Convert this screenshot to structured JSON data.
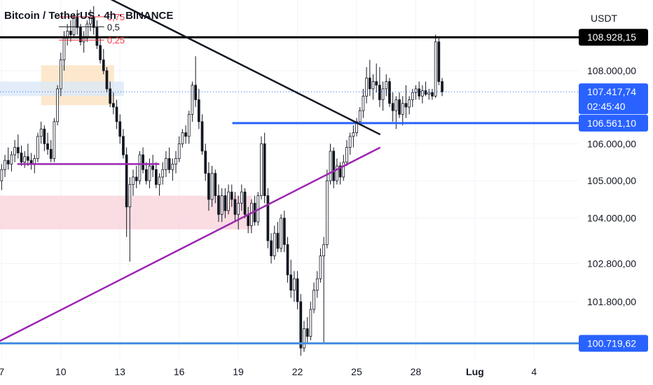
{
  "header": {
    "title": "Bitcoin / TetherUS · 4h · BINANCE",
    "unit": "USDT"
  },
  "chart_data": {
    "type": "candlestick",
    "title": "Bitcoin / TetherUS · 4h · BINANCE",
    "ylabel": "USDT",
    "ylim": [
      100250,
      109900
    ],
    "y_scale": "log",
    "x_ticks": [
      {
        "label": "7",
        "day": 7
      },
      {
        "label": "10",
        "day": 10
      },
      {
        "label": "13",
        "day": 13
      },
      {
        "label": "16",
        "day": 16
      },
      {
        "label": "19",
        "day": 19
      },
      {
        "label": "22",
        "day": 22
      },
      {
        "label": "25",
        "day": 25
      },
      {
        "label": "28",
        "day": 28
      },
      {
        "label": "Lug",
        "day": 31
      },
      {
        "label": "4",
        "day": 34
      }
    ],
    "y_ticks": [
      {
        "label": "108.000,00",
        "value": 108000
      },
      {
        "label": "106.000,00",
        "value": 106000
      },
      {
        "label": "105.000,00",
        "value": 105000
      },
      {
        "label": "104.000,00",
        "value": 104000
      },
      {
        "label": "102.800,00",
        "value": 102800
      },
      {
        "label": "101.800,00",
        "value": 101800
      }
    ],
    "price_tags": [
      {
        "label": "108.928,15",
        "value": 108928.15,
        "color": "#000000"
      },
      {
        "label": "107.417,74",
        "sub": "02:45:40",
        "value": 107417.74,
        "color": "#2962ff"
      },
      {
        "label": "106.561,10",
        "value": 106561.1,
        "color": "#2962ff"
      },
      {
        "label": "100.719,62",
        "value": 100719.62,
        "color": "#2962ff"
      }
    ],
    "current_price": 107417.74,
    "candle_colors": {
      "up": "#089981",
      "down": "#f23645",
      "body": "#131722"
    },
    "candles": [
      {
        "o": 105000,
        "h": 105450,
        "l": 104750,
        "c": 105300
      },
      {
        "o": 105300,
        "h": 105700,
        "l": 105100,
        "c": 105550
      },
      {
        "o": 105550,
        "h": 105900,
        "l": 105300,
        "c": 105450
      },
      {
        "o": 105450,
        "h": 105800,
        "l": 105250,
        "c": 105700
      },
      {
        "o": 105700,
        "h": 106100,
        "l": 105500,
        "c": 105900
      },
      {
        "o": 105900,
        "h": 106250,
        "l": 105600,
        "c": 105750
      },
      {
        "o": 105750,
        "h": 105950,
        "l": 105400,
        "c": 105500
      },
      {
        "o": 105500,
        "h": 105800,
        "l": 105350,
        "c": 105650
      },
      {
        "o": 105650,
        "h": 106000,
        "l": 105400,
        "c": 105550
      },
      {
        "o": 105550,
        "h": 105750,
        "l": 105300,
        "c": 105450
      },
      {
        "o": 105450,
        "h": 105700,
        "l": 105200,
        "c": 105600
      },
      {
        "o": 105600,
        "h": 106300,
        "l": 105500,
        "c": 106200
      },
      {
        "o": 106200,
        "h": 106600,
        "l": 106000,
        "c": 106400
      },
      {
        "o": 106400,
        "h": 106500,
        "l": 105800,
        "c": 106000
      },
      {
        "o": 106000,
        "h": 106300,
        "l": 105700,
        "c": 105850
      },
      {
        "o": 105850,
        "h": 106100,
        "l": 105500,
        "c": 105600
      },
      {
        "o": 105600,
        "h": 106700,
        "l": 105500,
        "c": 106600
      },
      {
        "o": 106600,
        "h": 107600,
        "l": 106500,
        "c": 107500
      },
      {
        "o": 107500,
        "h": 108500,
        "l": 107300,
        "c": 108300
      },
      {
        "o": 108300,
        "h": 109100,
        "l": 108000,
        "c": 108900
      },
      {
        "o": 108900,
        "h": 109300,
        "l": 108700,
        "c": 109100
      },
      {
        "o": 109100,
        "h": 109400,
        "l": 108800,
        "c": 109000
      },
      {
        "o": 109000,
        "h": 109600,
        "l": 108900,
        "c": 109500
      },
      {
        "o": 109500,
        "h": 109700,
        "l": 109000,
        "c": 109200
      },
      {
        "o": 109200,
        "h": 109300,
        "l": 108700,
        "c": 108800
      },
      {
        "o": 108800,
        "h": 109100,
        "l": 108500,
        "c": 108900
      },
      {
        "o": 108900,
        "h": 109400,
        "l": 108800,
        "c": 109300
      },
      {
        "o": 109300,
        "h": 109700,
        "l": 109100,
        "c": 109500
      },
      {
        "o": 109500,
        "h": 109800,
        "l": 109000,
        "c": 109200
      },
      {
        "o": 109200,
        "h": 109400,
        "l": 108600,
        "c": 108700
      },
      {
        "o": 108700,
        "h": 108900,
        "l": 108200,
        "c": 108300
      },
      {
        "o": 108300,
        "h": 108600,
        "l": 107900,
        "c": 108000
      },
      {
        "o": 108000,
        "h": 108100,
        "l": 107400,
        "c": 107500
      },
      {
        "o": 107500,
        "h": 107700,
        "l": 107000,
        "c": 107100
      },
      {
        "o": 107100,
        "h": 107400,
        "l": 106800,
        "c": 107000
      },
      {
        "o": 107000,
        "h": 107200,
        "l": 106400,
        "c": 106600
      },
      {
        "o": 106600,
        "h": 106800,
        "l": 106000,
        "c": 106200
      },
      {
        "o": 106200,
        "h": 106400,
        "l": 105600,
        "c": 105700
      },
      {
        "o": 105700,
        "h": 105900,
        "l": 103500,
        "c": 104300
      },
      {
        "o": 104300,
        "h": 105100,
        "l": 102850,
        "c": 104900
      },
      {
        "o": 104900,
        "h": 105300,
        "l": 104600,
        "c": 105100
      },
      {
        "o": 105100,
        "h": 105400,
        "l": 104800,
        "c": 105000
      },
      {
        "o": 105000,
        "h": 105800,
        "l": 104900,
        "c": 105700
      },
      {
        "o": 105700,
        "h": 105900,
        "l": 105200,
        "c": 105300
      },
      {
        "o": 105300,
        "h": 105500,
        "l": 104900,
        "c": 105000
      },
      {
        "o": 105000,
        "h": 105600,
        "l": 104800,
        "c": 105400
      },
      {
        "o": 105400,
        "h": 105700,
        "l": 105100,
        "c": 105300
      },
      {
        "o": 105300,
        "h": 105500,
        "l": 104800,
        "c": 104900
      },
      {
        "o": 104900,
        "h": 105200,
        "l": 104600,
        "c": 105100
      },
      {
        "o": 105100,
        "h": 105500,
        "l": 104900,
        "c": 105300
      },
      {
        "o": 105300,
        "h": 105800,
        "l": 105100,
        "c": 105600
      },
      {
        "o": 105600,
        "h": 105900,
        "l": 105200,
        "c": 105300
      },
      {
        "o": 105300,
        "h": 105600,
        "l": 105000,
        "c": 105450
      },
      {
        "o": 105450,
        "h": 105800,
        "l": 105200,
        "c": 105600
      },
      {
        "o": 105600,
        "h": 106200,
        "l": 105500,
        "c": 106000
      },
      {
        "o": 106000,
        "h": 106400,
        "l": 105900,
        "c": 106300
      },
      {
        "o": 106300,
        "h": 106500,
        "l": 106000,
        "c": 106200
      },
      {
        "o": 106200,
        "h": 106900,
        "l": 106000,
        "c": 106800
      },
      {
        "o": 106800,
        "h": 107700,
        "l": 106600,
        "c": 107600
      },
      {
        "o": 107600,
        "h": 108400,
        "l": 107000,
        "c": 107200
      },
      {
        "o": 107200,
        "h": 107500,
        "l": 106400,
        "c": 106600
      },
      {
        "o": 106600,
        "h": 106800,
        "l": 105700,
        "c": 105800
      },
      {
        "o": 105800,
        "h": 106000,
        "l": 105000,
        "c": 105200
      },
      {
        "o": 105200,
        "h": 105500,
        "l": 104200,
        "c": 104500
      },
      {
        "o": 104500,
        "h": 105400,
        "l": 104300,
        "c": 105200
      },
      {
        "o": 105200,
        "h": 105300,
        "l": 104400,
        "c": 104600
      },
      {
        "o": 104600,
        "h": 104900,
        "l": 103900,
        "c": 104100
      },
      {
        "o": 104100,
        "h": 104800,
        "l": 103900,
        "c": 104600
      },
      {
        "o": 104600,
        "h": 104800,
        "l": 104000,
        "c": 104200
      },
      {
        "o": 104200,
        "h": 104900,
        "l": 104100,
        "c": 104700
      },
      {
        "o": 104700,
        "h": 104900,
        "l": 104300,
        "c": 104500
      },
      {
        "o": 104500,
        "h": 104700,
        "l": 103900,
        "c": 104100
      },
      {
        "o": 104100,
        "h": 104600,
        "l": 103700,
        "c": 104400
      },
      {
        "o": 104400,
        "h": 104900,
        "l": 104200,
        "c": 104700
      },
      {
        "o": 104700,
        "h": 104800,
        "l": 104000,
        "c": 104100
      },
      {
        "o": 104100,
        "h": 104300,
        "l": 103600,
        "c": 103800
      },
      {
        "o": 103800,
        "h": 104500,
        "l": 103600,
        "c": 104400
      },
      {
        "o": 104400,
        "h": 104600,
        "l": 103800,
        "c": 103900
      },
      {
        "o": 103900,
        "h": 104700,
        "l": 103800,
        "c": 104600
      },
      {
        "o": 104600,
        "h": 106200,
        "l": 104500,
        "c": 106000
      },
      {
        "o": 106000,
        "h": 106300,
        "l": 104400,
        "c": 104600
      },
      {
        "o": 104600,
        "h": 104800,
        "l": 103200,
        "c": 103400
      },
      {
        "o": 103400,
        "h": 103600,
        "l": 102800,
        "c": 103000
      },
      {
        "o": 103000,
        "h": 103800,
        "l": 102900,
        "c": 103600
      },
      {
        "o": 103600,
        "h": 103900,
        "l": 103100,
        "c": 103200
      },
      {
        "o": 103200,
        "h": 104100,
        "l": 103100,
        "c": 104000
      },
      {
        "o": 104000,
        "h": 104200,
        "l": 103100,
        "c": 103300
      },
      {
        "o": 103300,
        "h": 103500,
        "l": 102300,
        "c": 102500
      },
      {
        "o": 102500,
        "h": 102900,
        "l": 101900,
        "c": 102100
      },
      {
        "o": 102100,
        "h": 102600,
        "l": 101800,
        "c": 102400
      },
      {
        "o": 102400,
        "h": 102600,
        "l": 101600,
        "c": 101800
      },
      {
        "o": 101800,
        "h": 102000,
        "l": 100400,
        "c": 100600
      },
      {
        "o": 100600,
        "h": 101300,
        "l": 100500,
        "c": 101100
      },
      {
        "o": 101100,
        "h": 101400,
        "l": 100700,
        "c": 100900
      },
      {
        "o": 100900,
        "h": 101800,
        "l": 100800,
        "c": 101600
      },
      {
        "o": 101600,
        "h": 102300,
        "l": 101500,
        "c": 102100
      },
      {
        "o": 102100,
        "h": 102600,
        "l": 101900,
        "c": 102400
      },
      {
        "o": 102400,
        "h": 103200,
        "l": 102300,
        "c": 103000
      },
      {
        "o": 103000,
        "h": 103500,
        "l": 100700,
        "c": 103300
      },
      {
        "o": 103300,
        "h": 105300,
        "l": 103200,
        "c": 105000
      },
      {
        "o": 105000,
        "h": 106000,
        "l": 104900,
        "c": 105800
      },
      {
        "o": 105800,
        "h": 105900,
        "l": 104800,
        "c": 105000
      },
      {
        "o": 105000,
        "h": 105600,
        "l": 104900,
        "c": 105400
      },
      {
        "o": 105400,
        "h": 105500,
        "l": 104900,
        "c": 105100
      },
      {
        "o": 105100,
        "h": 105700,
        "l": 105000,
        "c": 105500
      },
      {
        "o": 105500,
        "h": 106100,
        "l": 105400,
        "c": 105900
      },
      {
        "o": 105900,
        "h": 106300,
        "l": 105700,
        "c": 106200
      },
      {
        "o": 106200,
        "h": 106500,
        "l": 105900,
        "c": 106300
      },
      {
        "o": 106300,
        "h": 106700,
        "l": 106200,
        "c": 106600
      },
      {
        "o": 106600,
        "h": 107000,
        "l": 106500,
        "c": 106900
      },
      {
        "o": 106900,
        "h": 107500,
        "l": 106700,
        "c": 107300
      },
      {
        "o": 107300,
        "h": 108100,
        "l": 107100,
        "c": 107800
      },
      {
        "o": 107800,
        "h": 108300,
        "l": 107300,
        "c": 107500
      },
      {
        "o": 107500,
        "h": 107900,
        "l": 107200,
        "c": 107700
      },
      {
        "o": 107700,
        "h": 108200,
        "l": 107400,
        "c": 107600
      },
      {
        "o": 107600,
        "h": 108100,
        "l": 107000,
        "c": 107200
      },
      {
        "o": 107200,
        "h": 107700,
        "l": 106900,
        "c": 107500
      },
      {
        "o": 107500,
        "h": 107900,
        "l": 107300,
        "c": 107700
      },
      {
        "o": 107700,
        "h": 107800,
        "l": 107000,
        "c": 107100
      },
      {
        "o": 107100,
        "h": 107400,
        "l": 106600,
        "c": 106900
      },
      {
        "o": 106900,
        "h": 107300,
        "l": 106400,
        "c": 107200
      },
      {
        "o": 107200,
        "h": 107400,
        "l": 106700,
        "c": 106800
      },
      {
        "o": 106800,
        "h": 107300,
        "l": 106500,
        "c": 107100
      },
      {
        "o": 107100,
        "h": 107600,
        "l": 106700,
        "c": 107000
      },
      {
        "o": 107000,
        "h": 107300,
        "l": 106800,
        "c": 107200
      },
      {
        "o": 107200,
        "h": 107500,
        "l": 107000,
        "c": 107400
      },
      {
        "o": 107400,
        "h": 107600,
        "l": 107200,
        "c": 107500
      },
      {
        "o": 107500,
        "h": 107700,
        "l": 107200,
        "c": 107300
      },
      {
        "o": 107300,
        "h": 107600,
        "l": 107100,
        "c": 107450
      },
      {
        "o": 107450,
        "h": 107700,
        "l": 107300,
        "c": 107350
      },
      {
        "o": 107350,
        "h": 107500,
        "l": 107200,
        "c": 107400
      },
      {
        "o": 107400,
        "h": 107500,
        "l": 107200,
        "c": 107300
      },
      {
        "o": 107300,
        "h": 109000,
        "l": 107250,
        "c": 108800
      },
      {
        "o": 108800,
        "h": 108900,
        "l": 107600,
        "c": 107700
      },
      {
        "o": 107700,
        "h": 107800,
        "l": 107300,
        "c": 107417.74
      }
    ],
    "drawings": {
      "horizontal_lines": [
        {
          "value": 108928.15,
          "color": "#000000",
          "from_day": 6.6,
          "to_day": 38
        },
        {
          "value": 106561.1,
          "color": "#2962ff",
          "from_day": 18.7,
          "to_day": 38
        },
        {
          "value": 100719.62,
          "color": "#4a90e2",
          "from_day": 6.6,
          "to_day": 38
        }
      ],
      "trend_lines": [
        {
          "color": "#131722",
          "points": [
            [
              11.8,
              110200
            ],
            [
              26.2,
              106250
            ]
          ]
        },
        {
          "color": "#9c27b0",
          "points": [
            [
              6.6,
              100700
            ],
            [
              26.2,
              105900
            ]
          ]
        },
        {
          "color": "#9c27b0",
          "points": [
            [
              7.8,
              105450
            ],
            [
              15.0,
              105450
            ]
          ]
        }
      ],
      "zones": [
        {
          "color": "#fde2c0",
          "from_day": 9.0,
          "to_day": 12.7,
          "low": 107050,
          "high": 108150
        },
        {
          "color": "#dbe8f8",
          "from_day": 6.6,
          "to_day": 13.2,
          "low": 107300,
          "high": 107700
        },
        {
          "color": "#f9d3dc",
          "from_day": 6.6,
          "to_day": 19.7,
          "low": 103700,
          "high": 104600
        }
      ],
      "fib_levels": [
        {
          "label": "0,75",
          "value": 109500,
          "color": "#f23645"
        },
        {
          "label": "0,5",
          "value": 109220,
          "color": "#131722"
        },
        {
          "label": "0,25",
          "value": 108850,
          "color": "#f23645"
        }
      ]
    }
  }
}
